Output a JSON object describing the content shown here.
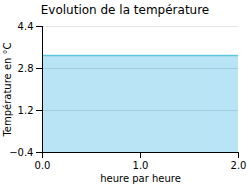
{
  "chart_data": {
    "type": "line",
    "title": "Evolution de la température",
    "xlabel": "heure par heure",
    "ylabel": "Température en °C",
    "x": [
      0,
      2
    ],
    "series": [
      {
        "type": "area",
        "color": "#b8e4f5",
        "values": [
          3.3,
          3.3
        ]
      },
      {
        "type": "line",
        "color": "#5bc8e0",
        "values": [
          3.3,
          3.3
        ]
      }
    ],
    "xlim": [
      0,
      2
    ],
    "ylim": [
      -0.4,
      4.4
    ],
    "xticks": [
      0,
      1,
      2
    ],
    "yticks": [
      -0.4,
      1.2,
      2.8,
      4.4
    ],
    "grid": true
  }
}
